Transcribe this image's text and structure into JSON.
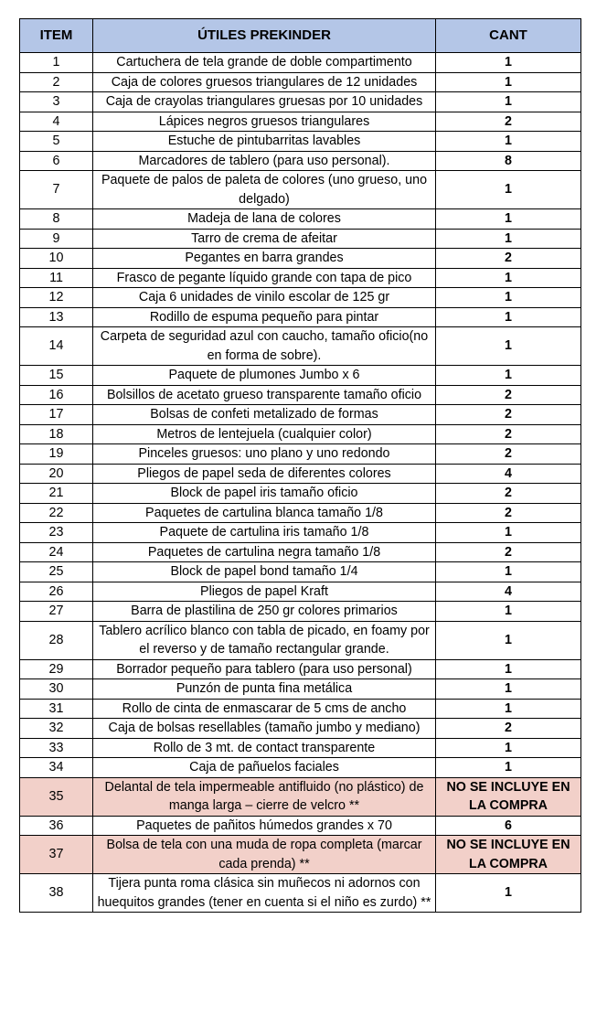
{
  "header": {
    "item": "ITEM",
    "utiles": "ÚTILES PREKINDER",
    "cant": "CANT"
  },
  "highlight_color": "#f2d0c9",
  "header_color": "#b4c6e7",
  "rows": [
    {
      "item": "1",
      "desc": "Cartuchera de tela grande de doble compartimento",
      "cant": "1"
    },
    {
      "item": "2",
      "desc": "Caja de colores gruesos triangulares de 12 unidades",
      "cant": "1"
    },
    {
      "item": "3",
      "desc": "Caja de crayolas triangulares gruesas por 10 unidades",
      "cant": "1"
    },
    {
      "item": "4",
      "desc": "Lápices negros gruesos triangulares",
      "cant": "2"
    },
    {
      "item": "5",
      "desc": "Estuche de pintubarritas lavables",
      "cant": "1"
    },
    {
      "item": "6",
      "desc": "Marcadores de tablero (para uso personal).",
      "cant": "8"
    },
    {
      "item": "7",
      "desc": "Paquete de palos de paleta de colores (uno grueso, uno delgado)",
      "cant": "1"
    },
    {
      "item": "8",
      "desc": "Madeja de lana de colores",
      "cant": "1"
    },
    {
      "item": "9",
      "desc": "Tarro de crema de afeitar",
      "cant": "1"
    },
    {
      "item": "10",
      "desc": "Pegantes en barra grandes",
      "cant": "2"
    },
    {
      "item": "11",
      "desc": "Frasco de pegante líquido grande con tapa de pico",
      "cant": "1"
    },
    {
      "item": "12",
      "desc": "Caja 6 unidades de vinilo escolar de 125 gr",
      "cant": "1"
    },
    {
      "item": "13",
      "desc": "Rodillo de espuma pequeño para pintar",
      "cant": "1"
    },
    {
      "item": "14",
      "desc": "Carpeta de seguridad azul con caucho, tamaño oficio(no en forma de sobre).",
      "cant": "1"
    },
    {
      "item": "15",
      "desc": "Paquete de plumones Jumbo x 6",
      "cant": "1"
    },
    {
      "item": "16",
      "desc": "Bolsillos de acetato grueso transparente tamaño oficio",
      "cant": "2"
    },
    {
      "item": "17",
      "desc": "Bolsas de confeti metalizado de formas",
      "cant": "2"
    },
    {
      "item": "18",
      "desc": "Metros de lentejuela (cualquier color)",
      "cant": "2"
    },
    {
      "item": "19",
      "desc": "Pinceles gruesos: uno plano y uno redondo",
      "cant": "2"
    },
    {
      "item": "20",
      "desc": "Pliegos de papel seda de diferentes colores",
      "cant": "4"
    },
    {
      "item": "21",
      "desc": "Block de papel iris tamaño oficio",
      "cant": "2"
    },
    {
      "item": "22",
      "desc": "Paquetes de cartulina blanca tamaño 1/8",
      "cant": "2"
    },
    {
      "item": "23",
      "desc": "Paquete de cartulina iris tamaño 1/8",
      "cant": "1"
    },
    {
      "item": "24",
      "desc": "Paquetes de cartulina negra tamaño 1/8",
      "cant": "2"
    },
    {
      "item": "25",
      "desc": "Block de papel bond tamaño 1/4",
      "cant": "1"
    },
    {
      "item": "26",
      "desc": "Pliegos de papel Kraft",
      "cant": "4"
    },
    {
      "item": "27",
      "desc": "Barra de plastilina de 250 gr colores primarios",
      "cant": "1"
    },
    {
      "item": "28",
      "desc": "Tablero acrílico blanco con tabla de picado, en foamy por el reverso y de tamaño rectangular grande.",
      "cant": "1"
    },
    {
      "item": "29",
      "desc": "Borrador pequeño para tablero (para uso personal)",
      "cant": "1"
    },
    {
      "item": "30",
      "desc": "Punzón de punta fina metálica",
      "cant": "1"
    },
    {
      "item": "31",
      "desc": "Rollo de cinta de enmascarar de 5 cms de ancho",
      "cant": "1"
    },
    {
      "item": "32",
      "desc": "Caja de bolsas resellables (tamaño jumbo y mediano)",
      "cant": "2"
    },
    {
      "item": "33",
      "desc": "Rollo de 3 mt. de contact transparente",
      "cant": "1"
    },
    {
      "item": "34",
      "desc": "Caja de pañuelos faciales",
      "cant": "1"
    },
    {
      "item": "35",
      "desc": "Delantal de tela impermeable antifluido (no plástico) de manga larga – cierre de velcro **",
      "cant": "NO SE INCLUYE EN LA COMPRA",
      "highlight": true
    },
    {
      "item": "36",
      "desc": "Paquetes de pañitos húmedos grandes x 70",
      "cant": "6"
    },
    {
      "item": "37",
      "desc": "Bolsa de tela con una muda de ropa completa (marcar cada prenda) **",
      "cant": "NO SE INCLUYE EN LA COMPRA",
      "highlight": true
    },
    {
      "item": "38",
      "desc": "Tijera punta roma clásica sin muñecos ni adornos con huequitos grandes (tener en cuenta si el niño es zurdo) **",
      "cant": "1"
    }
  ]
}
